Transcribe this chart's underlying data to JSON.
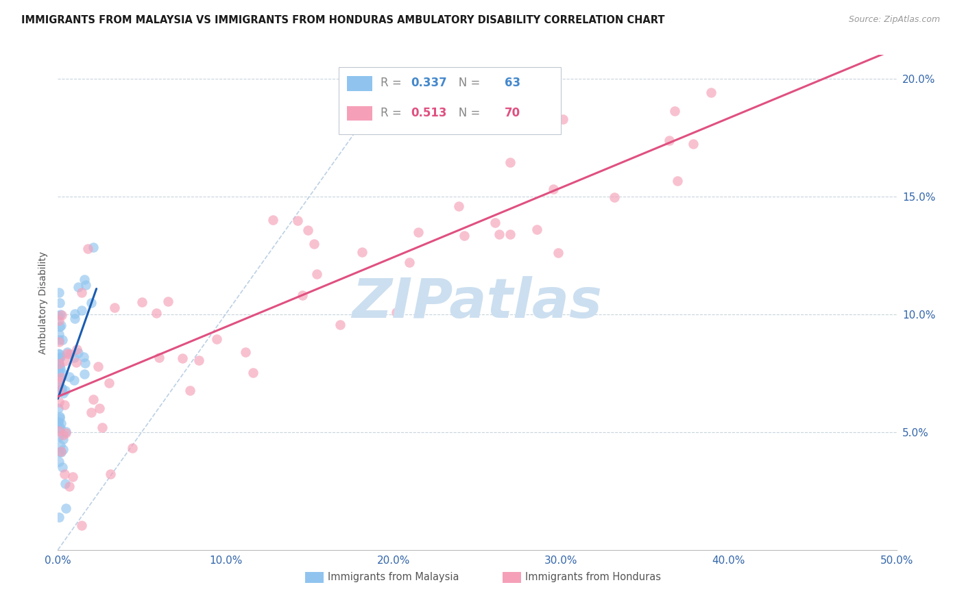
{
  "title": "IMMIGRANTS FROM MALAYSIA VS IMMIGRANTS FROM HONDURAS AMBULATORY DISABILITY CORRELATION CHART",
  "source": "Source: ZipAtlas.com",
  "ylabel": "Ambulatory Disability",
  "xlim": [
    0.0,
    0.5
  ],
  "ylim": [
    0.0,
    0.21
  ],
  "xticks": [
    0.0,
    0.1,
    0.2,
    0.3,
    0.4,
    0.5
  ],
  "yticks": [
    0.05,
    0.1,
    0.15,
    0.2
  ],
  "xtick_labels": [
    "0.0%",
    "10.0%",
    "20.0%",
    "30.0%",
    "40.0%",
    "50.0%"
  ],
  "ytick_labels": [
    "5.0%",
    "10.0%",
    "15.0%",
    "20.0%"
  ],
  "legend_labels": [
    "Immigrants from Malaysia",
    "Immigrants from Honduras"
  ],
  "malaysia_R": 0.337,
  "malaysia_N": 63,
  "honduras_R": 0.513,
  "honduras_N": 70,
  "malaysia_color": "#90c4ef",
  "honduras_color": "#f5a0b8",
  "malaysia_line_color": "#1a5cb0",
  "honduras_line_color": "#e05080",
  "diagonal_color": "#b0c8e0",
  "background_color": "#ffffff",
  "grid_color": "#c8d4dc",
  "watermark": "ZIPatlas",
  "watermark_color": "#ccdff0"
}
